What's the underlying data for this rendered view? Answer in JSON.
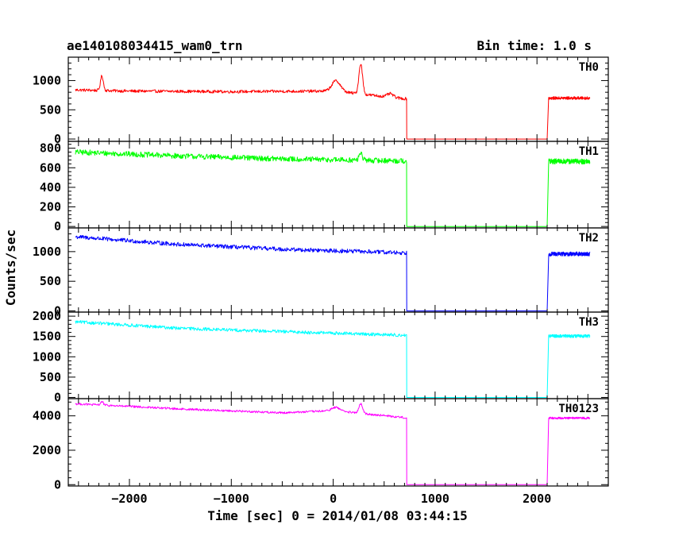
{
  "chart_data": {
    "type": "line",
    "title": "ae140108034415_wam0_trn",
    "bin_label": "Bin time: 1.0 s",
    "xlabel": "Time [sec] 0 = 2014/01/08 03:44:15",
    "ylabel": "Counts/sec",
    "xlim": [
      -2600,
      2700
    ],
    "x_ticks": [
      -2000,
      -1000,
      0,
      1000,
      2000
    ],
    "x_tick_labels": [
      "−2000",
      "−1000",
      "0",
      "1000",
      "2000"
    ],
    "data_x_range": [
      -2530,
      2520
    ],
    "gap": {
      "start": 720,
      "end": 2100
    },
    "grid": false,
    "panels": [
      {
        "name": "TH0",
        "color": "#ff0000",
        "ylim": [
          -40,
          1400
        ],
        "y_ticks": [
          0,
          500,
          1000
        ],
        "y_tick_labels": [
          "0",
          "500",
          "1000"
        ],
        "noise": 25,
        "profile": [
          [
            -2530,
            840
          ],
          [
            -2000,
            820
          ],
          [
            -1000,
            810
          ],
          [
            0,
            820
          ],
          [
            700,
            690
          ]
        ],
        "flares": [
          {
            "t": -2270,
            "amp": 250,
            "w": 20
          },
          {
            "t": 30,
            "amp": 180,
            "w": 60
          },
          {
            "t": 270,
            "amp": 520,
            "w": 25
          },
          {
            "t": 560,
            "amp": 60,
            "w": 40
          }
        ],
        "after": 700
      },
      {
        "name": "TH1",
        "color": "#00ff00",
        "ylim": [
          -15,
          870
        ],
        "y_ticks": [
          0,
          200,
          400,
          600,
          800
        ],
        "y_tick_labels": [
          "0",
          "200",
          "400",
          "600",
          "800"
        ],
        "noise": 28,
        "profile": [
          [
            -2530,
            760
          ],
          [
            -1500,
            720
          ],
          [
            -500,
            690
          ],
          [
            700,
            670
          ]
        ],
        "flares": [
          {
            "t": 270,
            "amp": 80,
            "w": 20
          }
        ],
        "after": 665
      },
      {
        "name": "TH2",
        "color": "#0000ff",
        "ylim": [
          -20,
          1400
        ],
        "y_ticks": [
          0,
          500,
          1000
        ],
        "y_tick_labels": [
          "0",
          "500",
          "1000"
        ],
        "noise": 35,
        "profile": [
          [
            -2530,
            1250
          ],
          [
            -1500,
            1120
          ],
          [
            -500,
            1040
          ],
          [
            700,
            980
          ]
        ],
        "flares": [],
        "after": 960
      },
      {
        "name": "TH3",
        "color": "#00ffff",
        "ylim": [
          -30,
          2100
        ],
        "y_ticks": [
          0,
          500,
          1000,
          1500,
          2000
        ],
        "y_tick_labels": [
          "0",
          "500",
          "1000",
          "1500",
          "2000"
        ],
        "noise": 40,
        "profile": [
          [
            -2530,
            1860
          ],
          [
            -1500,
            1700
          ],
          [
            -500,
            1620
          ],
          [
            700,
            1530
          ]
        ],
        "flares": [],
        "after": 1510
      },
      {
        "name": "TH0123",
        "color": "#ff00ff",
        "ylim": [
          -80,
          5000
        ],
        "y_ticks": [
          0,
          2000,
          4000
        ],
        "y_tick_labels": [
          "0",
          "2000",
          "4000"
        ],
        "noise": 60,
        "profile": [
          [
            -2530,
            4700
          ],
          [
            -1500,
            4400
          ],
          [
            -500,
            4180
          ],
          [
            0,
            4300
          ],
          [
            700,
            3900
          ]
        ],
        "flares": [
          {
            "t": -2270,
            "amp": 200,
            "w": 20
          },
          {
            "t": 30,
            "amp": 200,
            "w": 60
          },
          {
            "t": 270,
            "amp": 550,
            "w": 25
          }
        ],
        "after": 3870
      }
    ]
  }
}
